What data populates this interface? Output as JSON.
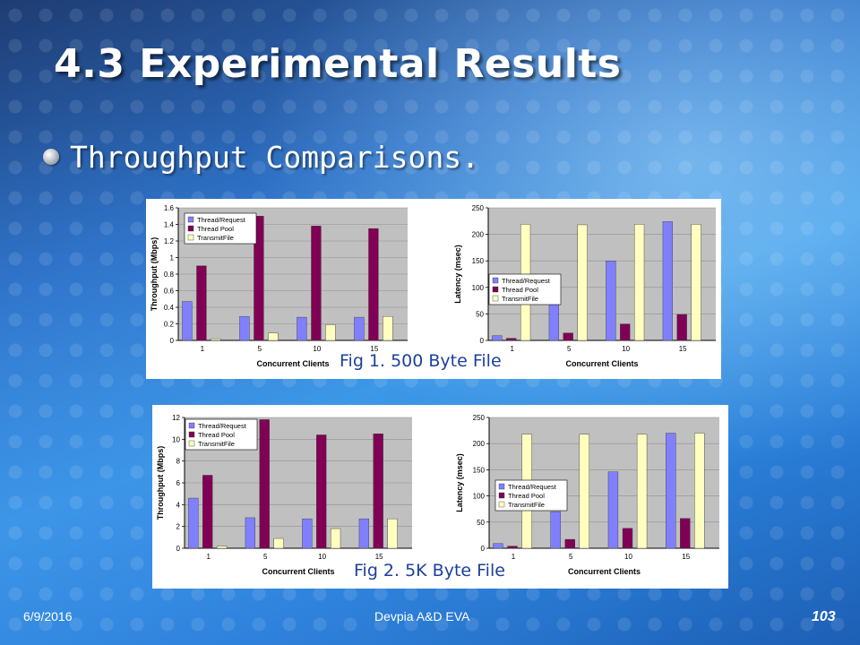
{
  "slide": {
    "title": "4.3 Experimental Results",
    "bullet": "Throughput Comparisons.",
    "footer_date": "6/9/2016",
    "footer_org": "Devpia A&D EVA",
    "page_number": "103"
  },
  "figures": [
    {
      "caption": "Fig 1. 500 Byte File"
    },
    {
      "caption": "Fig 2. 5K Byte File"
    }
  ],
  "colors": {
    "thread_request": "#8080ff",
    "thread_pool": "#800055",
    "transmit_file": "#ffffc0",
    "plot_bg": "#c0c0c0"
  },
  "chart_data": [
    {
      "type": "bar",
      "figure": "Fig 1. 500 Byte File",
      "categories": [
        "1",
        "5",
        "10",
        "15"
      ],
      "xlabel": "Concurrent Clients",
      "ylabel": "Throughput (Mbps)",
      "ylim": [
        0,
        1.6
      ],
      "yticks": [
        "0",
        "0.2",
        "0.4",
        "0.6",
        "0.8",
        "1",
        "1.2",
        "1.4",
        "1.6"
      ],
      "legend_position": "top-left",
      "series": [
        {
          "name": "Thread/Request",
          "values": [
            0.47,
            0.29,
            0.28,
            0.28
          ]
        },
        {
          "name": "Thread Pool",
          "values": [
            0.9,
            1.5,
            1.38,
            1.35
          ]
        },
        {
          "name": "TransmitFile",
          "values": [
            0.02,
            0.09,
            0.19,
            0.29
          ]
        }
      ]
    },
    {
      "type": "bar",
      "figure": "Fig 1. 500 Byte File",
      "categories": [
        "1",
        "5",
        "10",
        "15"
      ],
      "xlabel": "Concurrent Clients",
      "ylabel": "Latency (msec)",
      "ylim": [
        0,
        250
      ],
      "yticks": [
        "0",
        "50",
        "100",
        "150",
        "200",
        "250"
      ],
      "legend_position": "bottom-left",
      "series": [
        {
          "name": "Thread/Request",
          "values": [
            9,
            72,
            150,
            224
          ]
        },
        {
          "name": "Thread Pool",
          "values": [
            4,
            14,
            31,
            49
          ]
        },
        {
          "name": "TransmitFile",
          "values": [
            219,
            218,
            219,
            219
          ]
        }
      ]
    },
    {
      "type": "bar",
      "figure": "Fig 2. 5K Byte File",
      "categories": [
        "1",
        "5",
        "10",
        "15"
      ],
      "xlabel": "Concurrent Clients",
      "ylabel": "Throughput (Mbps)",
      "ylim": [
        0,
        12
      ],
      "yticks": [
        "0",
        "2",
        "4",
        "6",
        "8",
        "10",
        "12"
      ],
      "legend_position": "top-left",
      "series": [
        {
          "name": "Thread/Request",
          "values": [
            4.6,
            2.8,
            2.7,
            2.7
          ]
        },
        {
          "name": "Thread Pool",
          "values": [
            6.7,
            11.8,
            10.4,
            10.5
          ]
        },
        {
          "name": "TransmitFile",
          "values": [
            0.2,
            0.9,
            1.8,
            2.7
          ]
        }
      ]
    },
    {
      "type": "bar",
      "figure": "Fig 2. 5K Byte File",
      "categories": [
        "1",
        "5",
        "10",
        "15"
      ],
      "xlabel": "Concurrent Clients",
      "ylabel": "Latency (msec)",
      "ylim": [
        0,
        250
      ],
      "yticks": [
        "0",
        "50",
        "100",
        "150",
        "200",
        "250"
      ],
      "legend_position": "bottom-left",
      "series": [
        {
          "name": "Thread/Request",
          "values": [
            9,
            70,
            146,
            220
          ]
        },
        {
          "name": "Thread Pool",
          "values": [
            4,
            17,
            38,
            57
          ]
        },
        {
          "name": "TransmitFile",
          "values": [
            218,
            218,
            218,
            220
          ]
        }
      ]
    }
  ]
}
